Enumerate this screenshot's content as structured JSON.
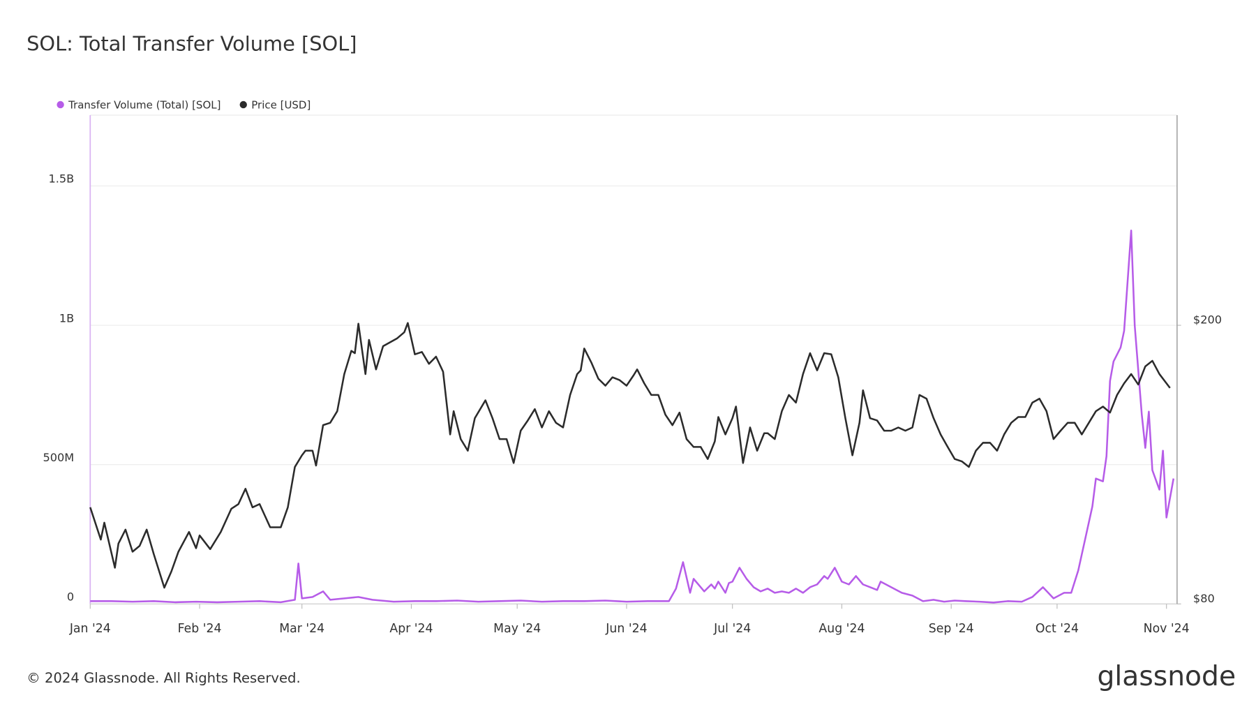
{
  "chart_data": {
    "type": "line",
    "title": "SOL: Total Transfer Volume [SOL]",
    "footer": "© 2024 Glassnode. All Rights Reserved.",
    "brand": "glassnode",
    "xlim": [
      "2024-01-01",
      "2024-11-04"
    ],
    "xticks": [
      {
        "value": "2024-01-01",
        "label": "Jan '24"
      },
      {
        "value": "2024-02-01",
        "label": "Feb '24"
      },
      {
        "value": "2024-03-01",
        "label": "Mar '24"
      },
      {
        "value": "2024-04-01",
        "label": "Apr '24"
      },
      {
        "value": "2024-05-01",
        "label": "May '24"
      },
      {
        "value": "2024-06-01",
        "label": "Jun '24"
      },
      {
        "value": "2024-07-01",
        "label": "Jul '24"
      },
      {
        "value": "2024-08-01",
        "label": "Aug '24"
      },
      {
        "value": "2024-09-01",
        "label": "Sep '24"
      },
      {
        "value": "2024-10-01",
        "label": "Oct '24"
      },
      {
        "value": "2024-11-01",
        "label": "Nov '24"
      }
    ],
    "ylim": [
      0,
      1754000000
    ],
    "yticks": [
      0,
      {
        "value": 500000000,
        "label": "500M"
      },
      {
        "value": 1000000000,
        "label": "1B"
      },
      {
        "value": 1500000000,
        "label": "1.5B"
      }
    ],
    "y2lim": [
      80,
      290.5
    ],
    "y2ticks": [
      {
        "value": 80,
        "label": "$80"
      },
      {
        "value": 200,
        "label": "$200"
      }
    ],
    "grid": true,
    "legend": "top-left",
    "series": [
      {
        "name": "Transfer Volume (Total) [SOL]",
        "color": "#b65ce8",
        "axis": "y",
        "x": [
          "2024-01-01",
          "2024-01-07",
          "2024-01-13",
          "2024-01-19",
          "2024-01-25",
          "2024-01-31",
          "2024-02-06",
          "2024-02-12",
          "2024-02-18",
          "2024-02-24",
          "2024-02-28",
          "2024-02-29",
          "2024-03-01",
          "2024-03-04",
          "2024-03-07",
          "2024-03-09",
          "2024-03-13",
          "2024-03-17",
          "2024-03-21",
          "2024-03-27",
          "2024-04-02",
          "2024-04-08",
          "2024-04-14",
          "2024-04-20",
          "2024-04-26",
          "2024-05-02",
          "2024-05-08",
          "2024-05-14",
          "2024-05-20",
          "2024-05-26",
          "2024-06-01",
          "2024-06-07",
          "2024-06-13",
          "2024-06-15",
          "2024-06-17",
          "2024-06-19",
          "2024-06-20",
          "2024-06-22",
          "2024-06-23",
          "2024-06-25",
          "2024-06-26",
          "2024-06-27",
          "2024-06-29",
          "2024-06-30",
          "2024-07-01",
          "2024-07-03",
          "2024-07-05",
          "2024-07-07",
          "2024-07-09",
          "2024-07-11",
          "2024-07-13",
          "2024-07-15",
          "2024-07-17",
          "2024-07-19",
          "2024-07-21",
          "2024-07-23",
          "2024-07-25",
          "2024-07-27",
          "2024-07-28",
          "2024-07-30",
          "2024-08-01",
          "2024-08-03",
          "2024-08-05",
          "2024-08-07",
          "2024-08-09",
          "2024-08-11",
          "2024-08-12",
          "2024-08-15",
          "2024-08-18",
          "2024-08-21",
          "2024-08-24",
          "2024-08-27",
          "2024-08-30",
          "2024-09-02",
          "2024-09-05",
          "2024-09-09",
          "2024-09-13",
          "2024-09-17",
          "2024-09-21",
          "2024-09-24",
          "2024-09-27",
          "2024-09-30",
          "2024-10-03",
          "2024-10-05",
          "2024-10-07",
          "2024-10-11",
          "2024-10-12",
          "2024-10-14",
          "2024-10-15",
          "2024-10-16",
          "2024-10-17",
          "2024-10-19",
          "2024-10-20",
          "2024-10-22",
          "2024-10-23",
          "2024-10-25",
          "2024-10-26",
          "2024-10-27",
          "2024-10-28",
          "2024-10-30",
          "2024-10-31",
          "2024-11-01",
          "2024-11-03"
        ],
        "values": [
          10000000,
          10000000,
          8000000,
          10000000,
          6000000,
          8000000,
          6000000,
          8000000,
          10000000,
          6000000,
          15000000,
          145000000,
          20000000,
          25000000,
          45000000,
          15000000,
          20000000,
          25000000,
          15000000,
          8000000,
          10000000,
          10000000,
          12000000,
          8000000,
          10000000,
          12000000,
          8000000,
          10000000,
          10000000,
          12000000,
          8000000,
          10000000,
          10000000,
          55000000,
          150000000,
          40000000,
          90000000,
          60000000,
          45000000,
          70000000,
          55000000,
          80000000,
          40000000,
          75000000,
          80000000,
          130000000,
          90000000,
          60000000,
          45000000,
          55000000,
          40000000,
          45000000,
          40000000,
          55000000,
          40000000,
          60000000,
          70000000,
          100000000,
          90000000,
          130000000,
          80000000,
          70000000,
          100000000,
          70000000,
          60000000,
          50000000,
          80000000,
          60000000,
          40000000,
          30000000,
          10000000,
          15000000,
          8000000,
          12000000,
          10000000,
          8000000,
          5000000,
          10000000,
          8000000,
          25000000,
          60000000,
          20000000,
          40000000,
          40000000,
          120000000,
          350000000,
          450000000,
          440000000,
          530000000,
          800000000,
          870000000,
          920000000,
          980000000,
          1340000000,
          1000000000,
          680000000,
          560000000,
          690000000,
          480000000,
          410000000,
          550000000,
          310000000,
          450000000
        ]
      },
      {
        "name": "Price [USD]",
        "color": "#2b2b2b",
        "axis": "y2",
        "x": [
          "2024-01-01",
          "2024-01-04",
          "2024-01-05",
          "2024-01-08",
          "2024-01-09",
          "2024-01-11",
          "2024-01-13",
          "2024-01-15",
          "2024-01-17",
          "2024-01-19",
          "2024-01-22",
          "2024-01-24",
          "2024-01-26",
          "2024-01-29",
          "2024-01-31",
          "2024-02-01",
          "2024-02-04",
          "2024-02-07",
          "2024-02-10",
          "2024-02-12",
          "2024-02-14",
          "2024-02-16",
          "2024-02-18",
          "2024-02-21",
          "2024-02-24",
          "2024-02-26",
          "2024-02-28",
          "2024-03-01",
          "2024-03-02",
          "2024-03-04",
          "2024-03-05",
          "2024-03-07",
          "2024-03-09",
          "2024-03-11",
          "2024-03-13",
          "2024-03-15",
          "2024-03-16",
          "2024-03-17",
          "2024-03-19",
          "2024-03-20",
          "2024-03-22",
          "2024-03-24",
          "2024-03-26",
          "2024-03-28",
          "2024-03-30",
          "2024-03-31",
          "2024-04-02",
          "2024-04-04",
          "2024-04-06",
          "2024-04-08",
          "2024-04-10",
          "2024-04-12",
          "2024-04-13",
          "2024-04-15",
          "2024-04-17",
          "2024-04-19",
          "2024-04-22",
          "2024-04-24",
          "2024-04-26",
          "2024-04-28",
          "2024-04-30",
          "2024-05-02",
          "2024-05-04",
          "2024-05-06",
          "2024-05-08",
          "2024-05-10",
          "2024-05-12",
          "2024-05-14",
          "2024-05-16",
          "2024-05-18",
          "2024-05-19",
          "2024-05-20",
          "2024-05-22",
          "2024-05-24",
          "2024-05-26",
          "2024-05-28",
          "2024-05-30",
          "2024-06-01",
          "2024-06-03",
          "2024-06-04",
          "2024-06-06",
          "2024-06-08",
          "2024-06-10",
          "2024-06-12",
          "2024-06-14",
          "2024-06-16",
          "2024-06-18",
          "2024-06-20",
          "2024-06-22",
          "2024-06-24",
          "2024-06-26",
          "2024-06-27",
          "2024-06-29",
          "2024-07-01",
          "2024-07-02",
          "2024-07-04",
          "2024-07-06",
          "2024-07-08",
          "2024-07-10",
          "2024-07-11",
          "2024-07-13",
          "2024-07-15",
          "2024-07-17",
          "2024-07-19",
          "2024-07-21",
          "2024-07-23",
          "2024-07-25",
          "2024-07-27",
          "2024-07-29",
          "2024-07-31",
          "2024-08-02",
          "2024-08-04",
          "2024-08-06",
          "2024-08-07",
          "2024-08-09",
          "2024-08-11",
          "2024-08-13",
          "2024-08-15",
          "2024-08-17",
          "2024-08-19",
          "2024-08-21",
          "2024-08-23",
          "2024-08-25",
          "2024-08-27",
          "2024-08-29",
          "2024-08-31",
          "2024-09-02",
          "2024-09-04",
          "2024-09-06",
          "2024-09-08",
          "2024-09-10",
          "2024-09-12",
          "2024-09-14",
          "2024-09-16",
          "2024-09-18",
          "2024-09-20",
          "2024-09-22",
          "2024-09-24",
          "2024-09-26",
          "2024-09-28",
          "2024-09-30",
          "2024-10-02",
          "2024-10-04",
          "2024-10-06",
          "2024-10-08",
          "2024-10-10",
          "2024-10-12",
          "2024-10-14",
          "2024-10-16",
          "2024-10-18",
          "2024-10-20",
          "2024-10-22",
          "2024-10-24",
          "2024-10-26",
          "2024-10-28",
          "2024-10-30",
          "2024-11-01",
          "2024-11-02"
        ],
        "values": [
          121.6,
          107.7,
          115,
          95.6,
          106,
          112,
          102.5,
          105,
          112,
          101.5,
          87,
          94,
          102.5,
          111,
          104,
          109.5,
          103.6,
          111,
          121,
          123,
          129.6,
          121.6,
          123,
          113,
          113,
          121.6,
          139,
          144,
          146,
          146,
          139.6,
          157,
          158,
          163,
          179,
          189,
          188,
          200.7,
          179,
          193.7,
          181,
          191,
          192.7,
          194.4,
          197,
          201,
          187.5,
          188.5,
          183.4,
          186.5,
          180,
          153,
          163,
          151,
          146,
          160,
          167.7,
          160,
          151,
          151,
          140.7,
          154.6,
          159,
          163.9,
          156,
          163,
          158,
          156,
          170,
          179,
          180.6,
          190,
          184,
          177,
          174,
          177.6,
          176.4,
          174,
          178.5,
          181,
          175,
          170,
          170,
          161.5,
          157,
          162.4,
          151,
          147.6,
          147.6,
          142.4,
          150,
          160.5,
          153,
          160,
          165,
          140.7,
          156,
          146,
          153.5,
          153.5,
          151,
          163,
          170,
          166.7,
          179,
          188,
          180.6,
          188,
          187.5,
          177.6,
          160,
          144,
          158,
          172,
          160,
          159,
          154.6,
          154.6,
          156,
          154.6,
          156,
          170,
          168.4,
          160,
          153,
          147.6,
          142.4,
          141.4,
          139,
          146,
          149.4,
          149.4,
          146,
          153,
          158,
          160.5,
          160.5,
          166.7,
          168.4,
          163,
          151,
          154.6,
          158,
          158,
          153,
          158,
          163,
          165,
          162.4,
          170,
          175,
          179,
          174.5,
          182.3,
          184.7,
          179,
          175,
          173
        ]
      }
    ]
  }
}
